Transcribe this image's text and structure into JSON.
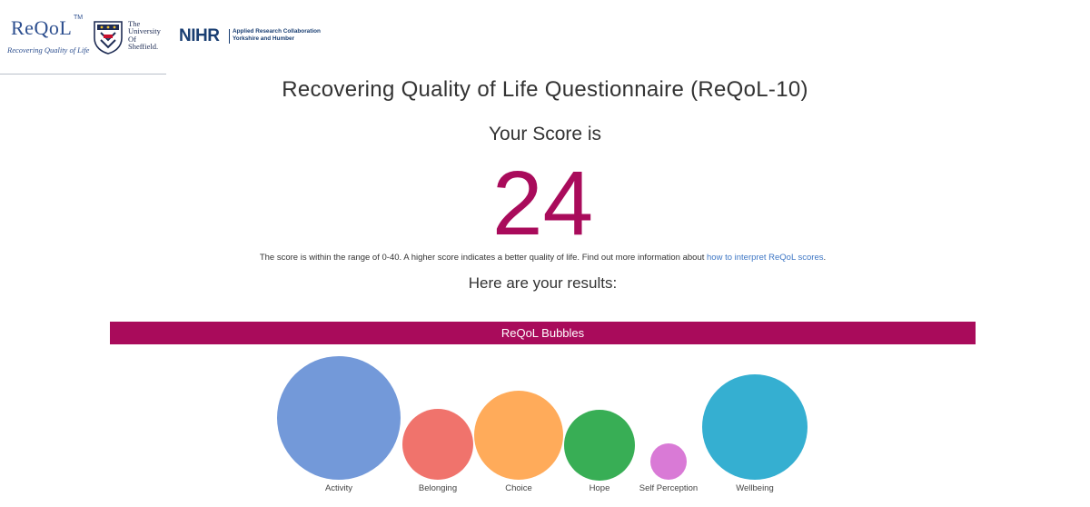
{
  "header": {
    "reqol_logo": {
      "wordmark": "ReQoL",
      "trademark": "TM",
      "tagline": "Recovering Quality of Life"
    },
    "university_logo": {
      "line1": "The",
      "line2": "University",
      "line3": "Of",
      "line4": "Sheffield."
    },
    "nihr_logo": {
      "wordmark": "NIHR",
      "line1": "Applied Research Collaboration",
      "line2": "Yorkshire and Humber"
    }
  },
  "main": {
    "title": "Recovering Quality of Life Questionnaire (ReQoL-10)",
    "score_label": "Your Score is",
    "score_value": "24",
    "info_text": "The score is within the range of 0-40. A higher score indicates a better quality of life. Find out more information about ",
    "info_link": "how to interpret ReQoL scores",
    "info_end": ".",
    "results_heading": "Here are your results:"
  },
  "bubbles_section": {
    "title": "ReQoL Bubbles",
    "bar_color": "#a90b5b",
    "items": [
      {
        "label": "Activity",
        "color": "#7399d9"
      },
      {
        "label": "Belonging",
        "color": "#f0736c"
      },
      {
        "label": "Choice",
        "color": "#ffab5a"
      },
      {
        "label": "Hope",
        "color": "#38ae55"
      },
      {
        "label": "Self Perception",
        "color": "#d97ad6"
      },
      {
        "label": "Wellbeing",
        "color": "#35afd1"
      }
    ]
  },
  "colors": {
    "accent": "#a90b5b",
    "link": "#3d76c4"
  }
}
